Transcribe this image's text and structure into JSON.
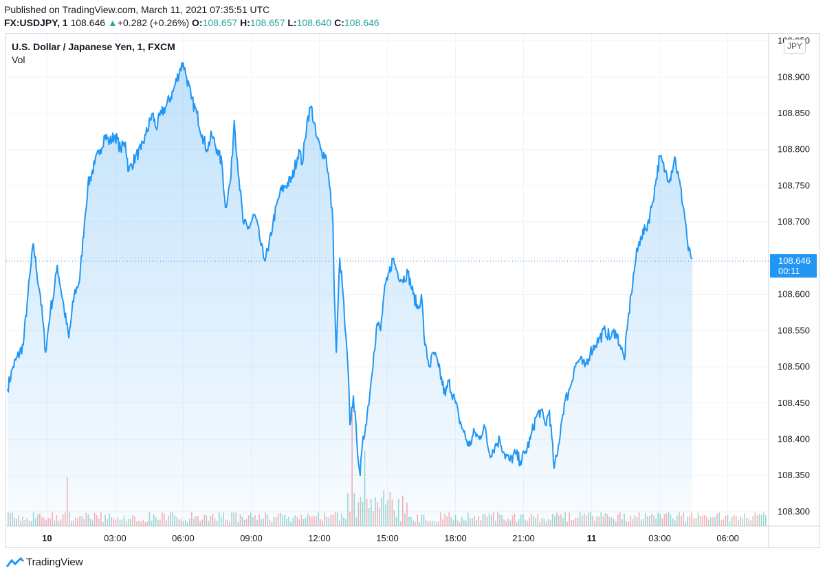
{
  "header": {
    "published": "Published on TradingView.com, March 11, 2021 07:35:51 UTC",
    "symbol": "FX:USDJPY, 1",
    "last": "108.646",
    "change_arrow": "▲",
    "change": "+0.282 (+0.26%)",
    "open_label": "O:",
    "open": "108.657",
    "high_label": "H:",
    "high": "108.657",
    "low_label": "L:",
    "low": "108.640",
    "close_label": "C:",
    "close": "108.646"
  },
  "chart_title": "U.S. Dollar / Japanese Yen, 1, FXCM",
  "vol_label": "Vol",
  "currency": "JPY",
  "price_label": {
    "price": "108.646",
    "timer": "00:11"
  },
  "footer": {
    "brand": "TradingView"
  },
  "colors": {
    "line": "#2196f3",
    "up_vol": "#26a69a",
    "down_vol": "#ef5350",
    "grid": "#f0f3fa"
  },
  "chart_data": {
    "type": "area",
    "title": "U.S. Dollar / Japanese Yen, 1, FXCM",
    "xlabel": "",
    "ylabel": "JPY",
    "ylim": [
      108.28,
      108.96
    ],
    "xlim": [
      -0.6,
      10.6
    ],
    "x_ticks": [
      {
        "t": 0,
        "label": "10",
        "bold": true
      },
      {
        "t": 1,
        "label": "03:00"
      },
      {
        "t": 2,
        "label": "06:00"
      },
      {
        "t": 3,
        "label": "09:00"
      },
      {
        "t": 4,
        "label": "12:00"
      },
      {
        "t": 5,
        "label": "15:00"
      },
      {
        "t": 6,
        "label": "18:00"
      },
      {
        "t": 7,
        "label": "21:00"
      },
      {
        "t": 8,
        "label": "11",
        "bold": true
      },
      {
        "t": 9,
        "label": "03:00"
      },
      {
        "t": 10,
        "label": "06:00"
      }
    ],
    "y_ticks": [
      "108.950",
      "108.900",
      "108.850",
      "108.800",
      "108.750",
      "108.700",
      "108.650",
      "108.600",
      "108.550",
      "108.500",
      "108.450",
      "108.400",
      "108.350",
      "108.300"
    ],
    "x_units": "3-hour periods from 10 Mar 00:00 UTC",
    "series": [
      {
        "name": "USDJPY close",
        "points": [
          [
            -0.58,
            108.47
          ],
          [
            -0.5,
            108.5
          ],
          [
            -0.35,
            108.53
          ],
          [
            -0.28,
            108.6
          ],
          [
            -0.2,
            108.67
          ],
          [
            -0.15,
            108.63
          ],
          [
            -0.1,
            108.6
          ],
          [
            -0.02,
            108.52
          ],
          [
            0.05,
            108.58
          ],
          [
            0.1,
            108.6
          ],
          [
            0.15,
            108.64
          ],
          [
            0.25,
            108.58
          ],
          [
            0.32,
            108.54
          ],
          [
            0.4,
            108.6
          ],
          [
            0.48,
            108.62
          ],
          [
            0.55,
            108.7
          ],
          [
            0.6,
            108.75
          ],
          [
            0.7,
            108.78
          ],
          [
            0.78,
            108.8
          ],
          [
            0.85,
            108.82
          ],
          [
            0.92,
            108.81
          ],
          [
            1.0,
            108.82
          ],
          [
            1.08,
            108.8
          ],
          [
            1.15,
            108.81
          ],
          [
            1.2,
            108.77
          ],
          [
            1.3,
            108.79
          ],
          [
            1.38,
            108.8
          ],
          [
            1.45,
            108.82
          ],
          [
            1.55,
            108.85
          ],
          [
            1.6,
            108.83
          ],
          [
            1.68,
            108.85
          ],
          [
            1.75,
            108.86
          ],
          [
            1.85,
            108.88
          ],
          [
            1.95,
            108.91
          ],
          [
            2.0,
            108.92
          ],
          [
            2.05,
            108.9
          ],
          [
            2.12,
            108.87
          ],
          [
            2.2,
            108.85
          ],
          [
            2.28,
            108.82
          ],
          [
            2.35,
            108.8
          ],
          [
            2.42,
            108.82
          ],
          [
            2.5,
            108.8
          ],
          [
            2.57,
            108.78
          ],
          [
            2.62,
            108.72
          ],
          [
            2.7,
            108.76
          ],
          [
            2.75,
            108.84
          ],
          [
            2.82,
            108.76
          ],
          [
            2.88,
            108.7
          ],
          [
            2.95,
            108.69
          ],
          [
            3.05,
            108.71
          ],
          [
            3.12,
            108.68
          ],
          [
            3.18,
            108.65
          ],
          [
            3.25,
            108.66
          ],
          [
            3.32,
            108.7
          ],
          [
            3.42,
            108.74
          ],
          [
            3.5,
            108.75
          ],
          [
            3.6,
            108.76
          ],
          [
            3.7,
            108.8
          ],
          [
            3.75,
            108.78
          ],
          [
            3.82,
            108.84
          ],
          [
            3.88,
            108.86
          ],
          [
            3.95,
            108.82
          ],
          [
            4.02,
            108.8
          ],
          [
            4.1,
            108.79
          ],
          [
            4.15,
            108.75
          ],
          [
            4.2,
            108.7
          ],
          [
            4.22,
            108.6
          ],
          [
            4.25,
            108.52
          ],
          [
            4.3,
            108.65
          ],
          [
            4.35,
            108.6
          ],
          [
            4.38,
            108.55
          ],
          [
            4.42,
            108.5
          ],
          [
            4.45,
            108.42
          ],
          [
            4.5,
            108.46
          ],
          [
            4.55,
            108.4
          ],
          [
            4.6,
            108.35
          ],
          [
            4.62,
            108.38
          ],
          [
            4.68,
            108.42
          ],
          [
            4.75,
            108.47
          ],
          [
            4.8,
            108.52
          ],
          [
            4.85,
            108.56
          ],
          [
            4.9,
            108.55
          ],
          [
            4.95,
            108.6
          ],
          [
            5.0,
            108.62
          ],
          [
            5.08,
            108.65
          ],
          [
            5.15,
            108.63
          ],
          [
            5.22,
            108.62
          ],
          [
            5.3,
            108.63
          ],
          [
            5.38,
            108.6
          ],
          [
            5.45,
            108.58
          ],
          [
            5.5,
            108.6
          ],
          [
            5.55,
            108.53
          ],
          [
            5.62,
            108.5
          ],
          [
            5.68,
            108.52
          ],
          [
            5.75,
            108.5
          ],
          [
            5.85,
            108.46
          ],
          [
            5.9,
            108.48
          ],
          [
            6.0,
            108.45
          ],
          [
            6.05,
            108.43
          ],
          [
            6.12,
            108.41
          ],
          [
            6.2,
            108.39
          ],
          [
            6.28,
            108.41
          ],
          [
            6.35,
            108.4
          ],
          [
            6.42,
            108.42
          ],
          [
            6.5,
            108.38
          ],
          [
            6.58,
            108.39
          ],
          [
            6.65,
            108.4
          ],
          [
            6.72,
            108.38
          ],
          [
            6.8,
            108.37
          ],
          [
            6.88,
            108.38
          ],
          [
            6.95,
            108.37
          ],
          [
            7.02,
            108.38
          ],
          [
            7.1,
            108.4
          ],
          [
            7.18,
            108.43
          ],
          [
            7.25,
            108.44
          ],
          [
            7.32,
            108.42
          ],
          [
            7.38,
            108.44
          ],
          [
            7.45,
            108.36
          ],
          [
            7.5,
            108.38
          ],
          [
            7.55,
            108.42
          ],
          [
            7.6,
            108.45
          ],
          [
            7.68,
            108.47
          ],
          [
            7.75,
            108.5
          ],
          [
            7.82,
            108.51
          ],
          [
            7.9,
            108.5
          ],
          [
            7.98,
            108.52
          ],
          [
            8.05,
            108.53
          ],
          [
            8.12,
            108.54
          ],
          [
            8.2,
            108.55
          ],
          [
            8.28,
            108.54
          ],
          [
            8.35,
            108.55
          ],
          [
            8.42,
            108.53
          ],
          [
            8.48,
            108.51
          ],
          [
            8.52,
            108.55
          ],
          [
            8.58,
            108.6
          ],
          [
            8.65,
            108.65
          ],
          [
            8.72,
            108.68
          ],
          [
            8.8,
            108.69
          ],
          [
            8.88,
            108.72
          ],
          [
            8.95,
            108.76
          ],
          [
            9.0,
            108.79
          ],
          [
            9.08,
            108.77
          ],
          [
            9.15,
            108.76
          ],
          [
            9.22,
            108.79
          ],
          [
            9.28,
            108.76
          ],
          [
            9.35,
            108.72
          ],
          [
            9.38,
            108.7
          ],
          [
            9.42,
            108.66
          ],
          [
            9.48,
            108.65
          ]
        ]
      }
    ],
    "volume_note": "volume bars along bottom, colored by up/down"
  }
}
